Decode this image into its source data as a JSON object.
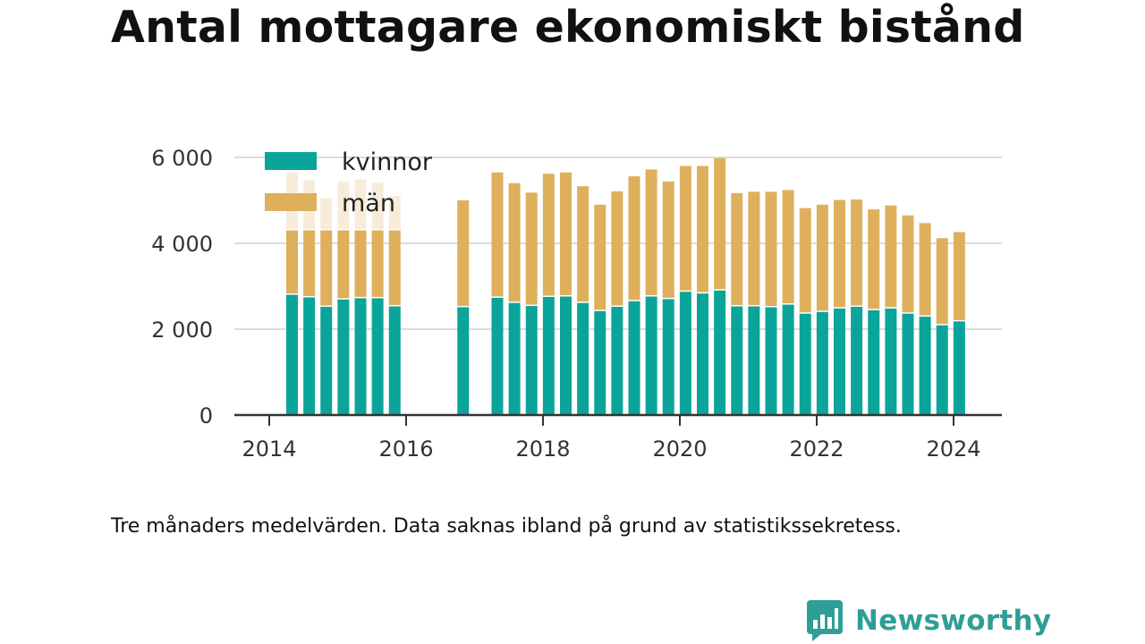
{
  "header": {
    "title": "Antal mottagare ekonomiskt bistånd"
  },
  "footer": {
    "note": "Tre månaders medelvärden. Data saknas ibland på grund av statistikssekretess.",
    "brand": "Newsworthy"
  },
  "chart_data": {
    "type": "bar",
    "stacked": true,
    "x_ticks": [
      "2014",
      "2016",
      "2018",
      "2020",
      "2022",
      "2024"
    ],
    "y_ticks": [
      "0",
      "2 000",
      "4 000",
      "6 000"
    ],
    "ylim": [
      0,
      6000
    ],
    "grid": true,
    "legend_position": "top-left",
    "colors": {
      "kvinnor": "#0ba49a",
      "män": "#deb05c",
      "män_faded": "#f7ecd9"
    },
    "series_names": [
      "kvinnor",
      "män"
    ],
    "x": [
      "2014-05",
      "2014-08",
      "2014-11",
      "2015-02",
      "2015-05",
      "2015-08",
      "2015-11",
      "2016-11",
      "2017-05",
      "2017-08",
      "2017-11",
      "2018-02",
      "2018-05",
      "2018-08",
      "2018-11",
      "2019-02",
      "2019-05",
      "2019-08",
      "2019-11",
      "2020-02",
      "2020-05",
      "2020-08",
      "2020-11",
      "2021-02",
      "2021-05",
      "2021-08",
      "2021-11",
      "2022-02",
      "2022-05",
      "2022-08",
      "2022-11",
      "2023-02",
      "2023-05",
      "2023-08",
      "2023-11",
      "2024-02"
    ],
    "kvinnor": [
      2800,
      2740,
      2520,
      2690,
      2720,
      2720,
      2530,
      2510,
      2730,
      2610,
      2540,
      2750,
      2760,
      2610,
      2420,
      2520,
      2650,
      2760,
      2700,
      2870,
      2830,
      2900,
      2530,
      2530,
      2510,
      2570,
      2360,
      2400,
      2480,
      2520,
      2440,
      2480,
      2360,
      2290,
      2090,
      2180
    ],
    "män_total": [
      4300,
      4300,
      4300,
      4300,
      4300,
      4300,
      4300,
      5000,
      5650,
      5400,
      5180,
      5620,
      5650,
      5330,
      4900,
      5210,
      5560,
      5720,
      5440,
      5800,
      5800,
      5980,
      5170,
      5200,
      5200,
      5240,
      4820,
      4900,
      5010,
      5020,
      4790,
      4880,
      4650,
      4470,
      4120,
      4260
    ],
    "faded_total": [
      5650,
      5470,
      5050,
      5430,
      5490,
      5410,
      5100,
      null,
      null,
      null,
      null,
      null,
      null,
      null,
      null,
      null,
      null,
      null,
      null,
      null,
      null,
      null,
      null,
      null,
      null,
      null,
      null,
      null,
      null,
      null,
      null,
      null,
      null,
      null,
      null,
      null
    ]
  }
}
